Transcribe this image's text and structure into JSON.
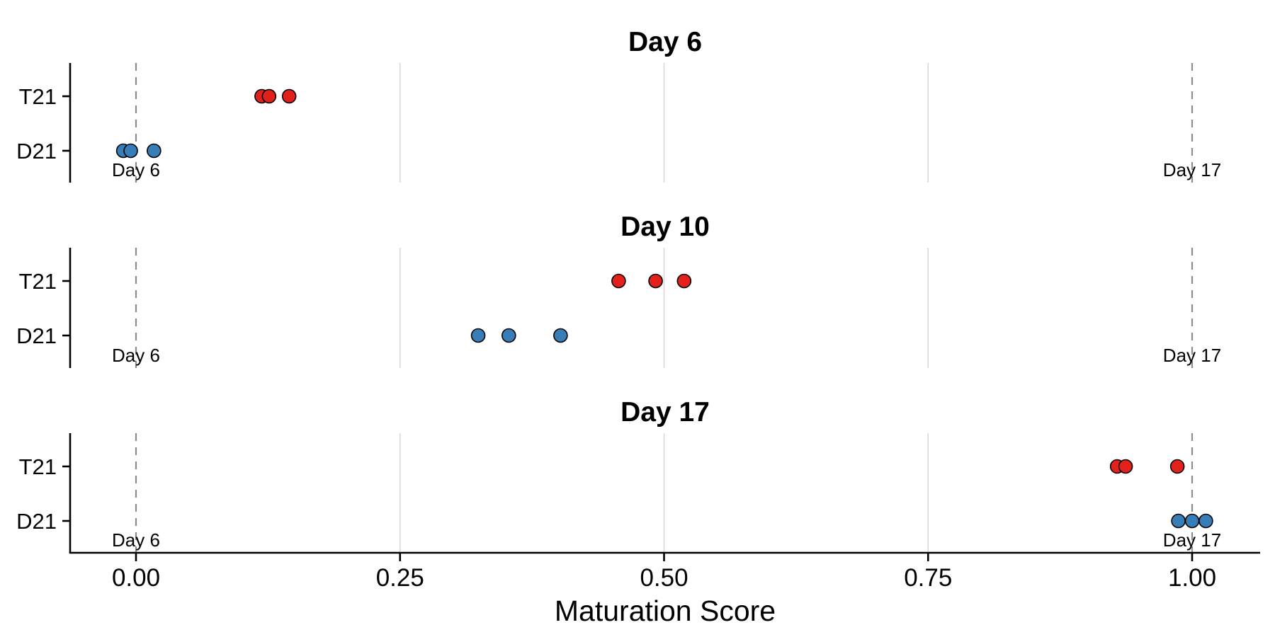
{
  "chart_data": {
    "type": "scatter",
    "title": "",
    "xlabel": "Maturation Score",
    "ylabel": "",
    "xlim": [
      -0.063,
      1.064
    ],
    "grid": "vertical-only",
    "grid_x": [
      0.25,
      0.5,
      0.75
    ],
    "x_ticks": [
      {
        "value": 0,
        "label": "0.00"
      },
      {
        "value": 0.25,
        "label": "0.25"
      },
      {
        "value": 0.5,
        "label": "0.50"
      },
      {
        "value": 0.75,
        "label": "0.75"
      },
      {
        "value": 1,
        "label": "1.00"
      }
    ],
    "y_categories": [
      "T21",
      "D21"
    ],
    "reference_lines": [
      {
        "value": 0,
        "label": "Day 6",
        "style": "dashed"
      },
      {
        "value": 1,
        "label": "Day 17",
        "style": "dashed"
      }
    ],
    "panels": [
      {
        "title": "Day 6",
        "series": [
          {
            "name": "T21",
            "color": "#E3211C",
            "values": [
              0.119,
              0.126,
              0.145
            ]
          },
          {
            "name": "D21",
            "color": "#377EB8",
            "values": [
              -0.012,
              -0.005,
              0.017
            ]
          }
        ]
      },
      {
        "title": "Day 10",
        "series": [
          {
            "name": "T21",
            "color": "#E3211C",
            "values": [
              0.457,
              0.492,
              0.519
            ]
          },
          {
            "name": "D21",
            "color": "#377EB8",
            "values": [
              0.324,
              0.353,
              0.402
            ]
          }
        ]
      },
      {
        "title": "Day 17",
        "series": [
          {
            "name": "T21",
            "color": "#E3211C",
            "values": [
              0.929,
              0.937,
              0.986
            ]
          },
          {
            "name": "D21",
            "color": "#377EB8",
            "values": [
              0.987,
              1.0,
              1.013
            ]
          }
        ]
      }
    ],
    "colors": {
      "t21": "#E3211C",
      "d21": "#377EB8",
      "point_outline": "#000000",
      "grid": "#D9D9D9",
      "ref_line": "#8C8C8C",
      "axis": "#000000"
    }
  }
}
